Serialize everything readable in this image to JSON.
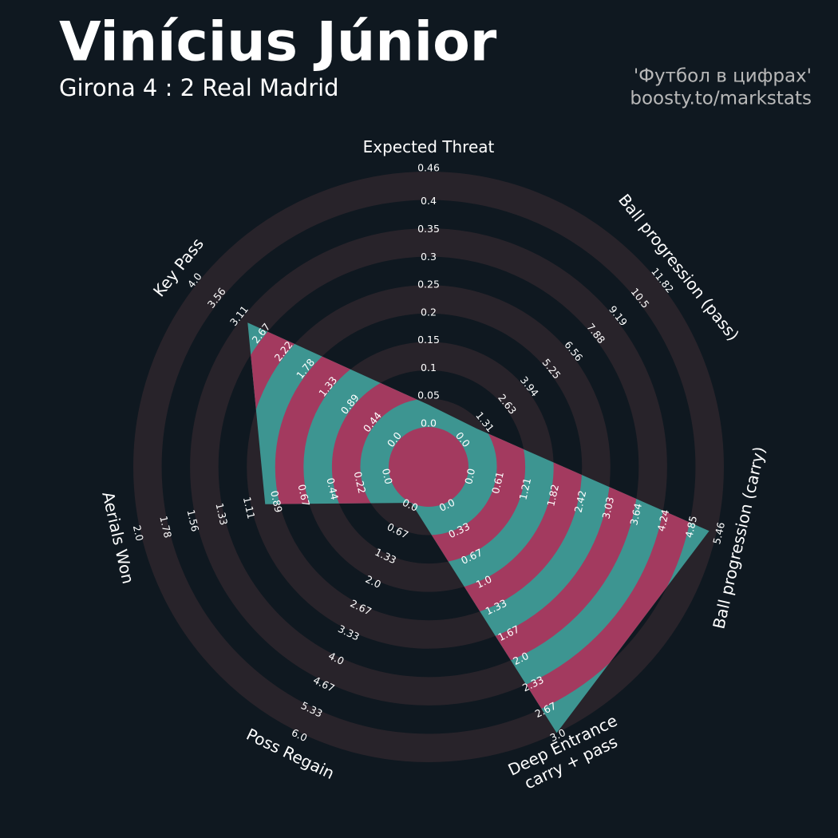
{
  "chart_data": {
    "type": "radar",
    "title": "Vinícius Júnior",
    "subtitle": "Girona 4 : 2 Real Madrid",
    "credits": [
      "'Футбол в цифрах'",
      "boosty.to/markstats"
    ],
    "colors": {
      "background": "#0f1820",
      "band": "#28232a",
      "fill": "#3d9591",
      "fill_alt": "#a33a5f"
    },
    "axes": [
      {
        "label": "Expected Threat",
        "lim": [
          0,
          0.46
        ],
        "ticks": [
          {
            "value": 0,
            "label": "0.0"
          },
          0.05,
          0.1,
          0.15,
          0.2,
          0.25,
          0.3,
          0.35,
          0.4,
          0.46
        ]
      },
      {
        "label": "Ball progression (pass)",
        "lim": [
          0,
          11.82
        ],
        "ticks": [
          {
            "value": 0,
            "label": "0.0"
          },
          1.31,
          2.63,
          3.94,
          5.25,
          6.56,
          7.88,
          9.19,
          10.5,
          11.82
        ]
      },
      {
        "label": "Ball progression (carry)",
        "lim": [
          0,
          5.46
        ],
        "ticks": [
          {
            "value": 0,
            "label": "0.0"
          },
          0.61,
          1.21,
          1.82,
          2.42,
          3.03,
          3.64,
          4.24,
          4.85,
          5.46
        ]
      },
      {
        "label": "Deep Entrance\ncarry + pass",
        "lim": [
          0,
          3
        ],
        "ticks": [
          {
            "value": 0,
            "label": "0.0"
          },
          0.33,
          0.67,
          {
            "value": 1,
            "label": "1.0"
          },
          1.33,
          1.67,
          {
            "value": 2,
            "label": "2.0"
          },
          2.33,
          2.67,
          {
            "value": 3,
            "label": "3.0"
          }
        ]
      },
      {
        "label": "Poss Regain",
        "lim": [
          0,
          6
        ],
        "ticks": [
          {
            "value": 0,
            "label": "0.0"
          },
          0.67,
          1.33,
          {
            "value": 2,
            "label": "2.0"
          },
          2.67,
          3.33,
          {
            "value": 4,
            "label": "4.0"
          },
          4.67,
          5.33,
          {
            "value": 6,
            "label": "6.0"
          }
        ]
      },
      {
        "label": "Aerials Won",
        "lim": [
          0,
          2
        ],
        "ticks": [
          {
            "value": 0,
            "label": "0.0"
          },
          0.22,
          0.44,
          0.67,
          0.89,
          1.11,
          1.33,
          1.56,
          1.78,
          {
            "value": 2,
            "label": "2.0"
          }
        ]
      },
      {
        "label": "Key Pass",
        "lim": [
          0,
          4
        ],
        "ticks": [
          {
            "value": 0,
            "label": "0.0"
          },
          0.44,
          0.89,
          1.33,
          1.78,
          2.22,
          2.67,
          3.11,
          3.56,
          {
            "value": 4,
            "label": "4.0"
          }
        ]
      }
    ],
    "values": [
      0.04,
      1.0,
      5.3,
      3,
      0,
      1.0,
      3
    ]
  }
}
